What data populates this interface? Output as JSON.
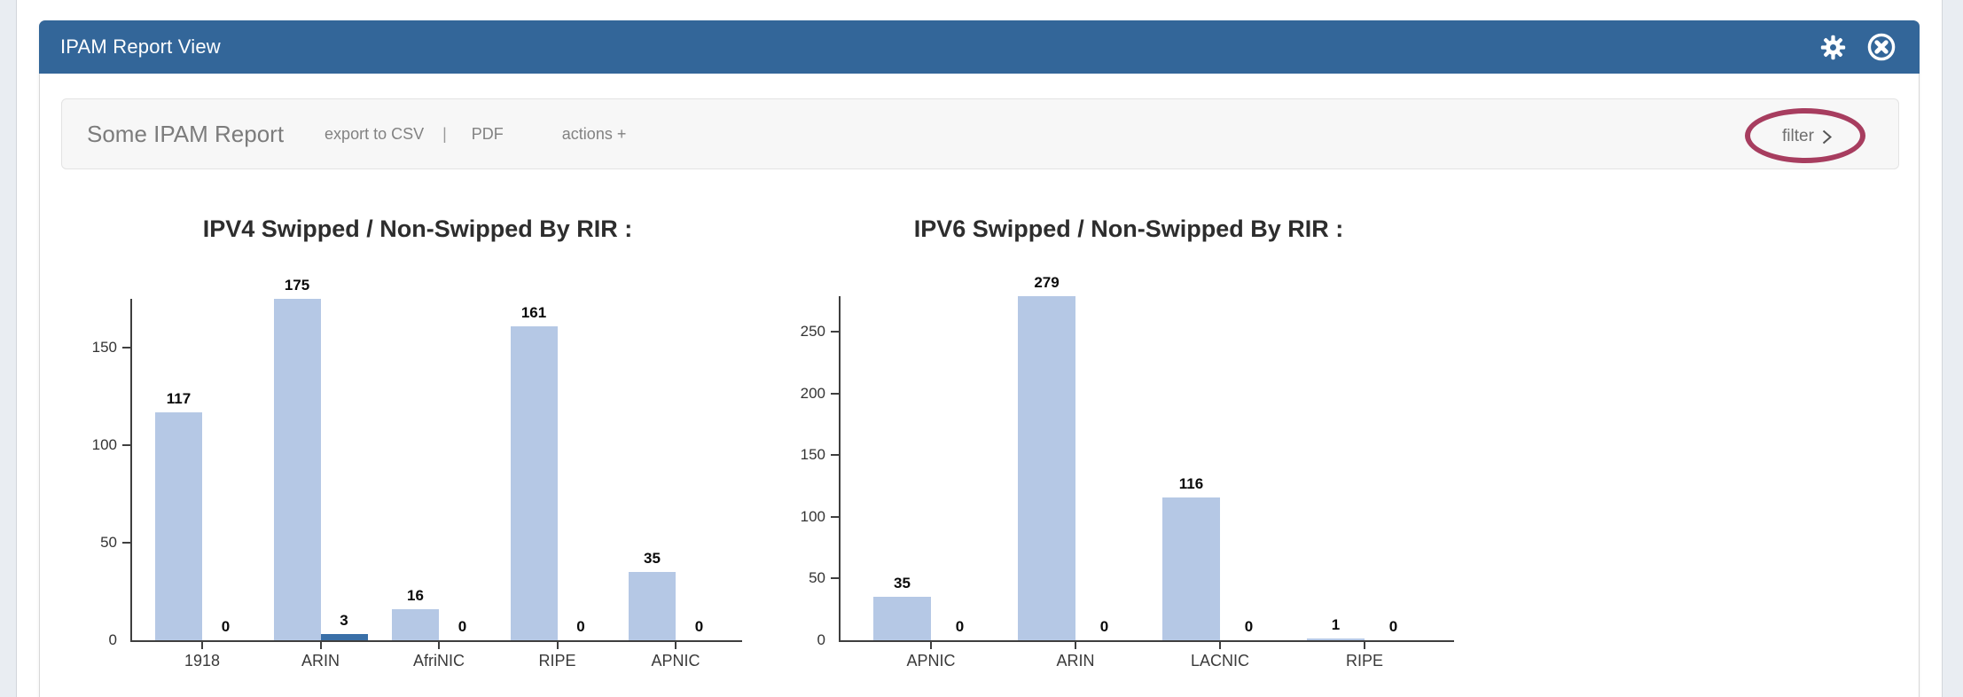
{
  "window": {
    "title": "IPAM Report View"
  },
  "header_icons": {
    "settings": "gear-icon",
    "close": "circled-x-icon"
  },
  "toolbar": {
    "report_title": "Some IPAM Report",
    "export_csv_label": "export to CSV",
    "separator": "|",
    "pdf_label": "PDF",
    "actions_label": "actions +",
    "filter_label": "filter"
  },
  "annotation": {
    "shape": "ellipse",
    "target": "filter",
    "color": "#a73d5f"
  },
  "colors": {
    "titlebar_blue": "#336699",
    "bar_light_blue": "#b5c8e5",
    "bar_dark_blue": "#3a70a8",
    "annotation_maroon": "#a73d5f",
    "gutter_gray": "#e9edf2",
    "toolbar_gray": "#f7f7f7"
  },
  "chart_data": [
    {
      "type": "bar",
      "title": "IPV4 Swipped / Non-Swipped By RIR :",
      "categories": [
        "1918",
        "ARIN",
        "AfriNIC",
        "RIPE",
        "APNIC"
      ],
      "series": [
        {
          "name": "Swipped",
          "color": "#b5c8e5",
          "values": [
            117,
            175,
            16,
            161,
            35
          ]
        },
        {
          "name": "Non-Swipped",
          "color": "#3a70a8",
          "values": [
            0,
            3,
            0,
            0,
            0
          ]
        }
      ],
      "yticks": [
        0,
        50,
        100,
        150
      ],
      "ylim": [
        0,
        175
      ],
      "grid": false,
      "legend": "none",
      "value_labels": true
    },
    {
      "type": "bar",
      "title": "IPV6 Swipped / Non-Swipped By RIR :",
      "categories": [
        "APNIC",
        "ARIN",
        "LACNIC",
        "RIPE"
      ],
      "series": [
        {
          "name": "Swipped",
          "color": "#b5c8e5",
          "values": [
            35,
            279,
            116,
            1
          ]
        },
        {
          "name": "Non-Swipped",
          "color": "#3a70a8",
          "values": [
            0,
            0,
            0,
            0
          ]
        }
      ],
      "yticks": [
        0,
        50,
        100,
        150,
        200,
        250
      ],
      "ylim": [
        0,
        279
      ],
      "grid": false,
      "legend": "none",
      "value_labels": true
    }
  ]
}
